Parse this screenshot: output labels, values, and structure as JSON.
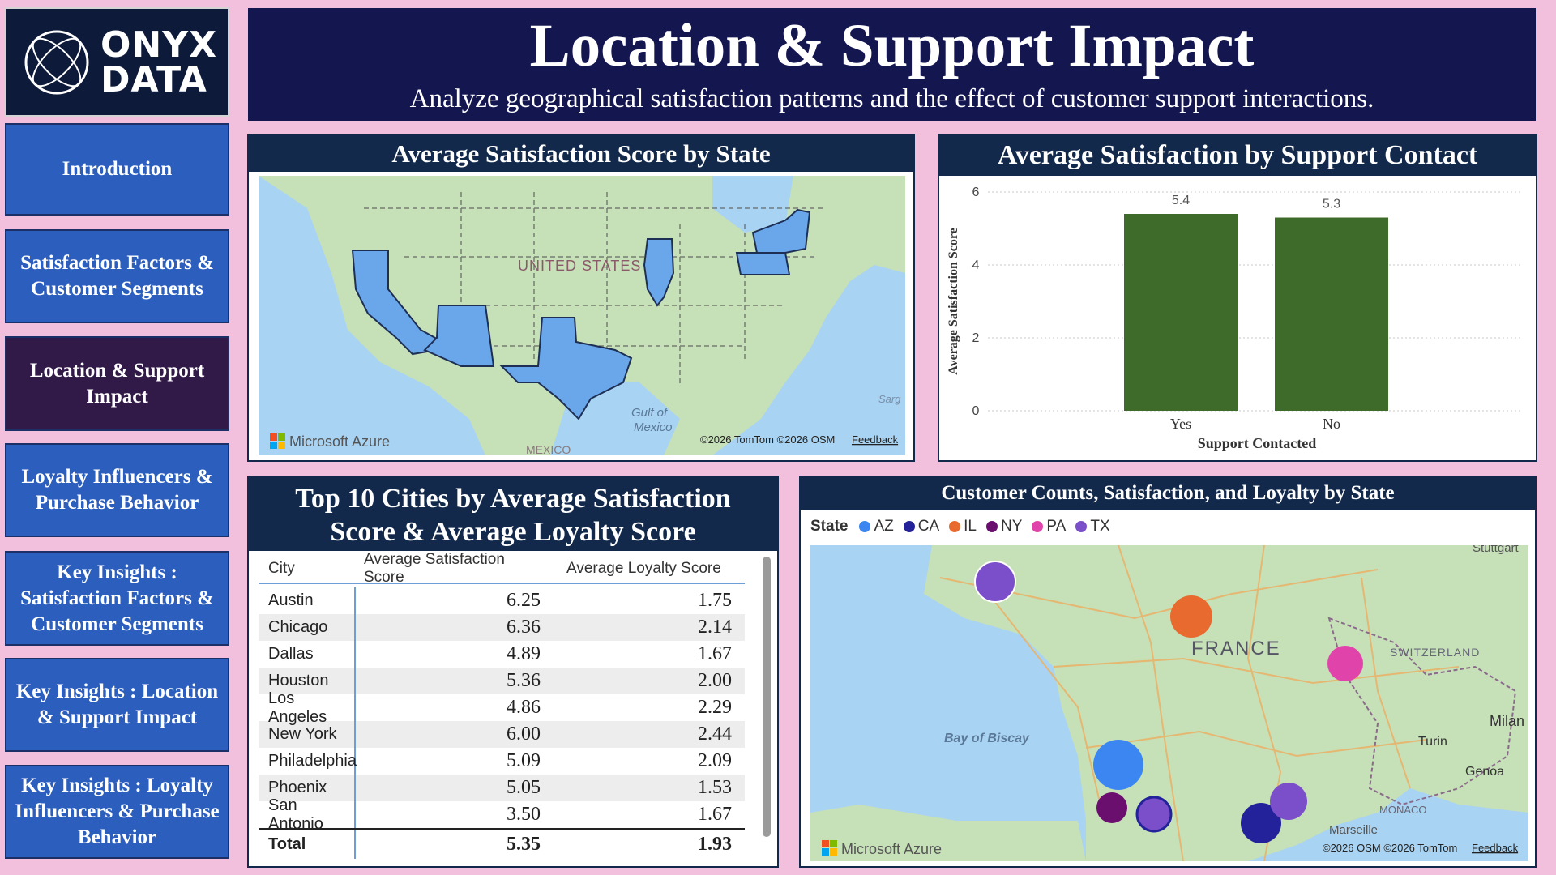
{
  "logo": {
    "line1": "ONYX",
    "line2": "DATA"
  },
  "nav": [
    {
      "label": "Introduction"
    },
    {
      "label": "Satisfaction Factors & Customer Segments"
    },
    {
      "label": "Location & Support Impact",
      "active": true
    },
    {
      "label": "Loyalty Influencers & Purchase Behavior"
    },
    {
      "label": "Key Insights : Satisfaction Factors & Customer Segments"
    },
    {
      "label": "Key Insights : Location & Support Impact"
    },
    {
      "label": "Key Insights : Loyalty Influencers & Purchase Behavior"
    }
  ],
  "header": {
    "title": "Location & Support Impact",
    "subtitle": "Analyze geographical satisfaction patterns and the effect of customer support interactions."
  },
  "state_map": {
    "title": "Average Satisfaction Score by State",
    "country_label": "UNITED STATES",
    "gulf_label_1": "Gulf of",
    "gulf_label_2": "Mexico",
    "mexico_label": "MEXICO",
    "sarg_label": "Sarg",
    "brand": "Microsoft Azure",
    "copyright": "©2026 TomTom ©2026 OSM",
    "feedback": "Feedback"
  },
  "chart_data": {
    "type": "bar",
    "title": "Average Satisfaction by Support Contact",
    "categories": [
      "Yes",
      "No"
    ],
    "values": [
      5.4,
      5.3
    ],
    "data_labels": [
      "5.4",
      "5.3"
    ],
    "xlabel": "Support Contacted",
    "ylabel": "Average Satisfaction Score",
    "ylim": [
      0,
      6
    ],
    "yticks": [
      "0",
      "2",
      "4",
      "6"
    ],
    "bar_color": "#3f6b2a",
    "grid": true
  },
  "table": {
    "title_line1": "Top 10 Cities by Average Satisfaction",
    "title_line2": "Score & Average Loyalty Score",
    "columns": [
      "City",
      "Average Satisfaction Score",
      "Average Loyalty Score"
    ],
    "rows": [
      [
        "Austin",
        "6.25",
        "1.75"
      ],
      [
        "Chicago",
        "6.36",
        "2.14"
      ],
      [
        "Dallas",
        "4.89",
        "1.67"
      ],
      [
        "Houston",
        "5.36",
        "2.00"
      ],
      [
        "Los Angeles",
        "4.86",
        "2.29"
      ],
      [
        "New York",
        "6.00",
        "2.44"
      ],
      [
        "Philadelphia",
        "5.09",
        "2.09"
      ],
      [
        "Phoenix",
        "5.05",
        "1.53"
      ],
      [
        "San Antonio",
        "3.50",
        "1.67"
      ]
    ],
    "total": [
      "Total",
      "5.35",
      "1.93"
    ]
  },
  "bubble_map": {
    "title": "Customer Counts, Satisfaction, and Loyalty by State",
    "legend_title": "State",
    "legend": [
      {
        "name": "AZ",
        "color": "#3b86f0"
      },
      {
        "name": "CA",
        "color": "#23229a"
      },
      {
        "name": "IL",
        "color": "#e86a2e"
      },
      {
        "name": "NY",
        "color": "#6b0f6e"
      },
      {
        "name": "PA",
        "color": "#e044aa"
      },
      {
        "name": "TX",
        "color": "#7b4fc9"
      }
    ],
    "labels": {
      "france": "FRANCE",
      "switzerland": "SWITZERLAND",
      "bay": "Bay of Biscay",
      "milan": "Milan",
      "turin": "Turin",
      "genoa": "Genoa",
      "monaco": "MONACO",
      "stuttgart": "Stuttgart",
      "marseille": "Marseille"
    },
    "brand": "Microsoft Azure",
    "copyright": "©2026 OSM ©2026 TomTom",
    "feedback": "Feedback"
  }
}
